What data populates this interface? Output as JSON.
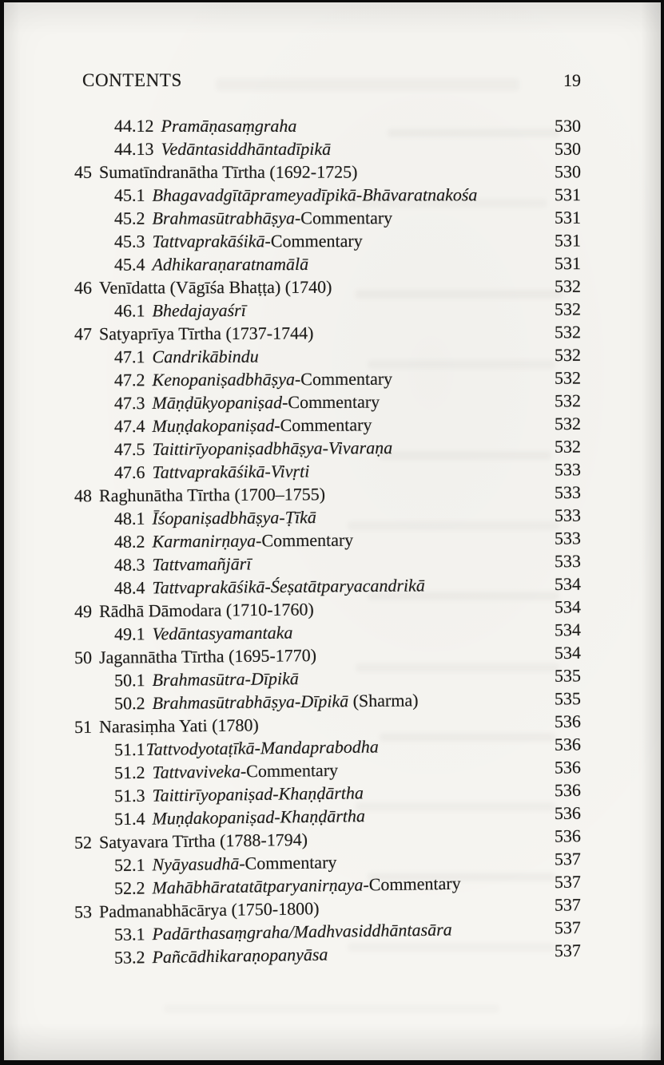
{
  "header": {
    "title": "CONTENTS",
    "page_number": "19"
  },
  "colors": {
    "paper": "#f6f5f1",
    "ink": "#1e1d1b",
    "background": "#0b0b0b"
  },
  "toc": {
    "rows": [
      {
        "num": "44.12",
        "level": 2,
        "page": "530",
        "parts": [
          {
            "text": "Pramāṇasaṃgraha",
            "italic": true
          }
        ]
      },
      {
        "num": "44.13",
        "level": 2,
        "page": "530",
        "parts": [
          {
            "text": "Vedāntasiddhāntadīpikā",
            "italic": true
          }
        ]
      },
      {
        "num": "45",
        "level": 1,
        "page": "530",
        "parts": [
          {
            "text": "Sumatīndranātha Tīrtha (1692-1725)",
            "italic": false
          }
        ]
      },
      {
        "num": "45.1",
        "level": 2,
        "page": "531",
        "parts": [
          {
            "text": "Bhagavadgītāprameyadīpikā-Bhāvaratnakośa",
            "italic": true
          }
        ]
      },
      {
        "num": "45.2",
        "level": 2,
        "page": "531",
        "parts": [
          {
            "text": "Brahmasūtrabhāṣya",
            "italic": true
          },
          {
            "text": "-Commentary",
            "italic": false
          }
        ]
      },
      {
        "num": "45.3",
        "level": 2,
        "page": "531",
        "parts": [
          {
            "text": "Tattvaprakāśikā",
            "italic": true
          },
          {
            "text": "-Commentary",
            "italic": false
          }
        ]
      },
      {
        "num": "45.4",
        "level": 2,
        "page": "531",
        "parts": [
          {
            "text": "Adhikaraṇaratnamālā",
            "italic": true
          }
        ]
      },
      {
        "num": "46",
        "level": 1,
        "page": "532",
        "parts": [
          {
            "text": "Venīdatta (Vāgīśa Bhaṭṭa) (1740)",
            "italic": false
          }
        ]
      },
      {
        "num": "46.1",
        "level": 2,
        "page": "532",
        "parts": [
          {
            "text": "Bhedajayaśrī",
            "italic": true
          }
        ]
      },
      {
        "num": "47",
        "level": 1,
        "page": "532",
        "parts": [
          {
            "text": "Satyaprīya Tīrtha (1737-1744)",
            "italic": false
          }
        ]
      },
      {
        "num": "47.1",
        "level": 2,
        "page": "532",
        "parts": [
          {
            "text": "Candrikābindu",
            "italic": true
          }
        ]
      },
      {
        "num": "47.2",
        "level": 2,
        "page": "532",
        "parts": [
          {
            "text": "Kenopaniṣadbhāṣya",
            "italic": true
          },
          {
            "text": "-Commentary",
            "italic": false
          }
        ]
      },
      {
        "num": "47.3",
        "level": 2,
        "page": "532",
        "parts": [
          {
            "text": "Māṇḍūkyopaniṣad",
            "italic": true
          },
          {
            "text": "-Commentary",
            "italic": false
          }
        ]
      },
      {
        "num": "47.4",
        "level": 2,
        "page": "532",
        "parts": [
          {
            "text": "Muṇḍakopaniṣad",
            "italic": true
          },
          {
            "text": "-Commentary",
            "italic": false
          }
        ]
      },
      {
        "num": "47.5",
        "level": 2,
        "page": "532",
        "parts": [
          {
            "text": "Taittirīyopaniṣadbhāṣya-Vivaraṇa",
            "italic": true
          }
        ]
      },
      {
        "num": "47.6",
        "level": 2,
        "page": "533",
        "parts": [
          {
            "text": "Tattvaprakāśikā-Vivṛti",
            "italic": true
          }
        ]
      },
      {
        "num": "48",
        "level": 1,
        "page": "533",
        "parts": [
          {
            "text": "Raghunātha Tīrtha (1700–1755)",
            "italic": false
          }
        ]
      },
      {
        "num": "48.1",
        "level": 2,
        "page": "533",
        "parts": [
          {
            "text": "Īśopaniṣadbhāṣya-Ṭīkā",
            "italic": true
          }
        ]
      },
      {
        "num": "48.2",
        "level": 2,
        "page": "533",
        "parts": [
          {
            "text": "Karmanirṇaya",
            "italic": true
          },
          {
            "text": "-Commentary",
            "italic": false
          }
        ]
      },
      {
        "num": "48.3",
        "level": 2,
        "page": "533",
        "parts": [
          {
            "text": "Tattvamañjārī",
            "italic": true
          }
        ]
      },
      {
        "num": "48.4",
        "level": 2,
        "page": "534",
        "parts": [
          {
            "text": "Tattvaprakāśikā-Śeṣatātparyacandrikā",
            "italic": true
          }
        ]
      },
      {
        "num": "49",
        "level": 1,
        "page": "534",
        "parts": [
          {
            "text": "Rādhā Dāmodara (1710-1760)",
            "italic": false
          }
        ]
      },
      {
        "num": "49.1",
        "level": 2,
        "page": "534",
        "parts": [
          {
            "text": "Vedāntasyamantaka",
            "italic": true
          }
        ]
      },
      {
        "num": "50",
        "level": 1,
        "page": "534",
        "parts": [
          {
            "text": "Jagannātha Tīrtha (1695-1770)",
            "italic": false
          }
        ]
      },
      {
        "num": "50.1",
        "level": 2,
        "page": "535",
        "parts": [
          {
            "text": "Brahmasūtra-Dīpikā",
            "italic": true
          }
        ]
      },
      {
        "num": "50.2",
        "level": 2,
        "page": "535",
        "parts": [
          {
            "text": "Brahmasūtrabhāṣya-Dīpikā",
            "italic": true
          },
          {
            "text": " (Sharma)",
            "italic": false
          }
        ]
      },
      {
        "num": "51",
        "level": 1,
        "page": "536",
        "parts": [
          {
            "text": "Narasiṃha Yati (1780)",
            "italic": false
          }
        ]
      },
      {
        "num": "51.1",
        "level": 2,
        "page": "536",
        "tight": true,
        "parts": [
          {
            "text": "Tattvodyotaṭīkā-Mandaprabodha",
            "italic": true
          }
        ]
      },
      {
        "num": "51.2",
        "level": 2,
        "page": "536",
        "parts": [
          {
            "text": "Tattvaviveka",
            "italic": true
          },
          {
            "text": "-Commentary",
            "italic": false
          }
        ]
      },
      {
        "num": "51.3",
        "level": 2,
        "page": "536",
        "parts": [
          {
            "text": "Taittirīyopaniṣad-Khaṇḍārtha",
            "italic": true
          }
        ]
      },
      {
        "num": "51.4",
        "level": 2,
        "page": "536",
        "parts": [
          {
            "text": "Muṇḍakopaniṣad-Khaṇḍārtha",
            "italic": true
          }
        ]
      },
      {
        "num": "52",
        "level": 1,
        "page": "536",
        "parts": [
          {
            "text": "Satyavara Tīrtha (1788-1794)",
            "italic": false
          }
        ]
      },
      {
        "num": "52.1",
        "level": 2,
        "page": "537",
        "parts": [
          {
            "text": "Nyāyasudhā",
            "italic": true
          },
          {
            "text": "-Commentary",
            "italic": false
          }
        ]
      },
      {
        "num": "52.2",
        "level": 2,
        "page": "537",
        "parts": [
          {
            "text": "Mahābhāratatātparyanirṇaya",
            "italic": true
          },
          {
            "text": "-Commentary",
            "italic": false
          }
        ]
      },
      {
        "num": "53",
        "level": 1,
        "page": "537",
        "parts": [
          {
            "text": "Padmanabhācārya (1750-1800)",
            "italic": false
          }
        ]
      },
      {
        "num": "53.1",
        "level": 2,
        "page": "537",
        "parts": [
          {
            "text": "Padārthasaṃgraha/Madhvasiddhāntasāra",
            "italic": true
          }
        ]
      },
      {
        "num": "53.2",
        "level": 2,
        "page": "537",
        "parts": [
          {
            "text": "Pañcādhikaraṇopanyāsa",
            "italic": true
          }
        ]
      }
    ]
  }
}
